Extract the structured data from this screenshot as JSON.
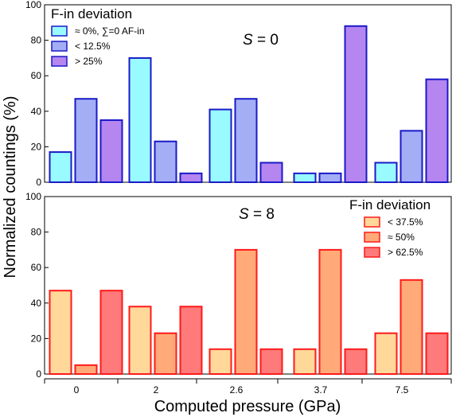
{
  "chart_data": [
    {
      "type": "bar",
      "panel_label_var": "S",
      "panel_label_rest": " = 0",
      "categories": [
        "0",
        "2",
        "2.6",
        "3.7",
        "7.5"
      ],
      "series": [
        {
          "name": "≈ 0%, ∑=0 AF-in",
          "values": [
            17,
            70,
            41,
            5,
            11
          ],
          "fill": "#99fbff",
          "stroke": "#1a1ac8"
        },
        {
          "name": "< 12.5%",
          "values": [
            47,
            23,
            47,
            5,
            29
          ],
          "fill": "#a3aef5",
          "stroke": "#1a1ac8"
        },
        {
          "name": "> 25%",
          "values": [
            35,
            5,
            11,
            88,
            58
          ],
          "fill": "#b585f0",
          "stroke": "#1a1ac8"
        }
      ],
      "legend": {
        "title": "F-in deviation",
        "placement": "top-left"
      },
      "ylim": [
        0,
        100
      ],
      "yticks": [
        "0",
        "20",
        "40",
        "60",
        "80",
        "100"
      ]
    },
    {
      "type": "bar",
      "panel_label_var": "S",
      "panel_label_rest": " = 8",
      "categories": [
        "0",
        "2",
        "2.6",
        "3.7",
        "7.5"
      ],
      "series": [
        {
          "name": "< 37.5%",
          "values": [
            47,
            38,
            14,
            14,
            23
          ],
          "fill": "#ffd89a",
          "stroke": "#ff1a1a"
        },
        {
          "name": "≈ 50%",
          "values": [
            5,
            23,
            70,
            70,
            53
          ],
          "fill": "#ffaa78",
          "stroke": "#ff1a1a"
        },
        {
          "name": "> 62.5%",
          "values": [
            47,
            38,
            14,
            14,
            23
          ],
          "fill": "#ff7a7a",
          "stroke": "#ff1a1a"
        }
      ],
      "legend": {
        "title": "F-in deviation",
        "placement": "top-right"
      },
      "ylim": [
        0,
        100
      ],
      "yticks": [
        "0",
        "20",
        "40",
        "60",
        "80",
        "100"
      ]
    }
  ],
  "xlabel": "Computed pressure (GPa)",
  "ylabel": "Normalized countings (%)"
}
